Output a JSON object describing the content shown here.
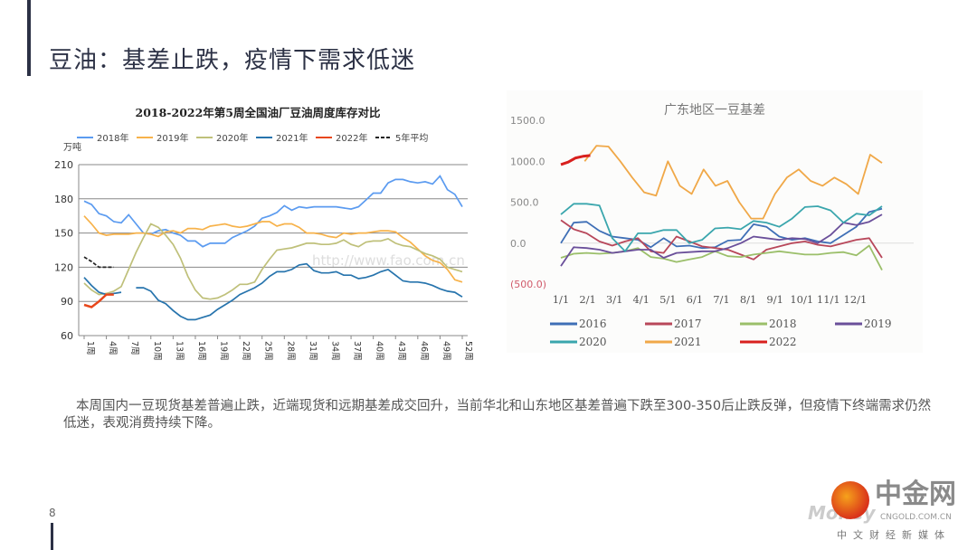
{
  "slide": {
    "title": "豆油：基差止跌，疫情下需求低迷",
    "page_number": "8",
    "body": "本周国内一豆现货基差普遍止跌，近端现货和远期基差成交回升，当前华北和山东地区基差普遍下跌至300-350后止跌反弹，但疫情下终端需求仍然低迷，表观消费持续下降。",
    "logo": {
      "name": "中金网",
      "domain": "CNGOLD.COM.CN",
      "tagline": "中文财经新媒体",
      "watermark": "Money"
    }
  },
  "chart_data": [
    {
      "type": "line",
      "title": "2018-2022年第5周全国油厂豆油周度库存对比",
      "ylabel": "万吨",
      "xlabel": "",
      "ylim": [
        60,
        210
      ],
      "yticks": [
        "60",
        "90",
        "120",
        "150",
        "180",
        "210"
      ],
      "xticks": [
        "1周",
        "4周",
        "7周",
        "10周",
        "13周",
        "16周",
        "19周",
        "22周",
        "25周",
        "28周",
        "31周",
        "34周",
        "37周",
        "40周",
        "43周",
        "46周",
        "49周",
        "52周"
      ],
      "xtick_weeks": [
        1,
        4,
        7,
        10,
        13,
        16,
        19,
        22,
        25,
        28,
        31,
        34,
        37,
        40,
        43,
        46,
        49,
        52
      ],
      "grid": true,
      "legend": "top",
      "watermark": "http://www.fao.com.cn",
      "series": [
        {
          "name": "2018年",
          "color": "#5b9bf0",
          "dash": false,
          "values": [
            178,
            175,
            167,
            165,
            160,
            159,
            166,
            158,
            150,
            149,
            152,
            153,
            150,
            148,
            143,
            143,
            138,
            141,
            141,
            141,
            146,
            149,
            152,
            156,
            163,
            165,
            168,
            174,
            170,
            173,
            172,
            173,
            173,
            173,
            173,
            172,
            171,
            173,
            179,
            185,
            185,
            194,
            197,
            197,
            195,
            194,
            195,
            193,
            200,
            188,
            184,
            173
          ]
        },
        {
          "name": "2019年",
          "color": "#f7b24a",
          "dash": false,
          "values": [
            165,
            158,
            150,
            148,
            149,
            149,
            149,
            150,
            150,
            149,
            147,
            151,
            152,
            150,
            154,
            154,
            153,
            156,
            157,
            158,
            156,
            155,
            156,
            158,
            160,
            160,
            156,
            158,
            158,
            155,
            150,
            150,
            149,
            147,
            146,
            150,
            149,
            150,
            150,
            151,
            152,
            152,
            151,
            146,
            142,
            136,
            130,
            126,
            124,
            118,
            109,
            107
          ]
        },
        {
          "name": "2020年",
          "color": "#bfc07a",
          "dash": false,
          "values": [
            106,
            100,
            96,
            97,
            99,
            103,
            118,
            133,
            146,
            158,
            155,
            148,
            140,
            128,
            112,
            100,
            93,
            92,
            93,
            96,
            100,
            105,
            105,
            107,
            118,
            127,
            135,
            136,
            137,
            139,
            141,
            141,
            140,
            140,
            141,
            144,
            140,
            138,
            142,
            143,
            143,
            145,
            141,
            139,
            138,
            135,
            132,
            130,
            127,
            120,
            118,
            116
          ]
        },
        {
          "name": "2021年",
          "color": "#2774ad",
          "dash": false,
          "values": [
            111,
            104,
            98,
            96,
            97,
            98,
            null,
            102,
            102,
            99,
            91,
            88,
            82,
            77,
            74,
            74,
            76,
            78,
            83,
            87,
            91,
            96,
            99,
            102,
            106,
            112,
            116,
            116,
            118,
            122,
            123,
            117,
            115,
            115,
            116,
            113,
            113,
            110,
            111,
            113,
            116,
            118,
            113,
            108,
            107,
            107,
            106,
            104,
            101,
            99,
            98,
            94
          ]
        },
        {
          "name": "2022年",
          "color": "#e8471b",
          "dash": false,
          "values": [
            87,
            85,
            90,
            96,
            96
          ]
        },
        {
          "name": "5年平均",
          "color": "#222222",
          "dash": true,
          "values": [
            129,
            125,
            120,
            120,
            120
          ]
        }
      ]
    },
    {
      "type": "line",
      "title": "广东地区一豆基差",
      "ylim": [
        -500,
        1500
      ],
      "yticks": [
        "(500.0)",
        "0.0",
        "500.0",
        "1000.0",
        "1500.0"
      ],
      "ytick_values": [
        -500,
        0,
        500,
        1000,
        1500
      ],
      "xticks": [
        "1/1",
        "2/1",
        "3/1",
        "4/1",
        "5/1",
        "6/1",
        "7/1",
        "8/1",
        "9/1",
        "10/1",
        "11/1",
        "12/1"
      ],
      "x_unit": "half-month index (0 = 1/1, 24 = 12/31)",
      "legend": "bottom",
      "series": [
        {
          "name": "2016",
          "color": "#3f6fb6",
          "values": [
            0,
            250,
            260,
            150,
            80,
            60,
            40,
            -50,
            60,
            -40,
            -30,
            -60,
            -50,
            30,
            40,
            230,
            200,
            80,
            40,
            60,
            20,
            0,
            100,
            200,
            380,
            420
          ]
        },
        {
          "name": "2017",
          "color": "#b8475a",
          "values": [
            280,
            170,
            120,
            20,
            -30,
            20,
            60,
            -100,
            -120,
            80,
            20,
            -40,
            -60,
            -80,
            -140,
            -200,
            -80,
            -40,
            0,
            20,
            -20,
            -40,
            0,
            40,
            60,
            -180
          ]
        },
        {
          "name": "2018",
          "color": "#9bbf6a",
          "values": [
            -180,
            -130,
            -120,
            -130,
            -120,
            -100,
            -60,
            -170,
            -190,
            -230,
            -200,
            -170,
            -100,
            -160,
            -170,
            -140,
            -120,
            -100,
            -120,
            -140,
            -140,
            -120,
            -110,
            -150,
            -30,
            -330
          ]
        },
        {
          "name": "2019",
          "color": "#6a4f9a",
          "values": [
            -280,
            -50,
            -60,
            -80,
            -120,
            -100,
            -80,
            -80,
            -180,
            -120,
            -110,
            -100,
            -100,
            -60,
            0,
            80,
            60,
            40,
            60,
            50,
            0,
            100,
            250,
            220,
            260,
            350
          ]
        },
        {
          "name": "2020",
          "color": "#3aa6ad",
          "values": [
            350,
            480,
            480,
            460,
            60,
            -100,
            120,
            120,
            160,
            160,
            0,
            40,
            180,
            190,
            170,
            270,
            250,
            200,
            300,
            440,
            450,
            400,
            250,
            360,
            340,
            450
          ]
        },
        {
          "name": "2021",
          "color": "#f0a848",
          "values": [
            null,
            null,
            1000,
            1190,
            1180,
            1000,
            800,
            620,
            580,
            1000,
            700,
            600,
            900,
            700,
            760,
            500,
            300,
            300,
            600,
            800,
            900,
            760,
            700,
            800,
            720,
            600,
            1080,
            980
          ]
        },
        {
          "name": "2022",
          "color": "#d8201e",
          "values": [
            960,
            990,
            1040,
            1060,
            1070
          ]
        }
      ]
    }
  ]
}
